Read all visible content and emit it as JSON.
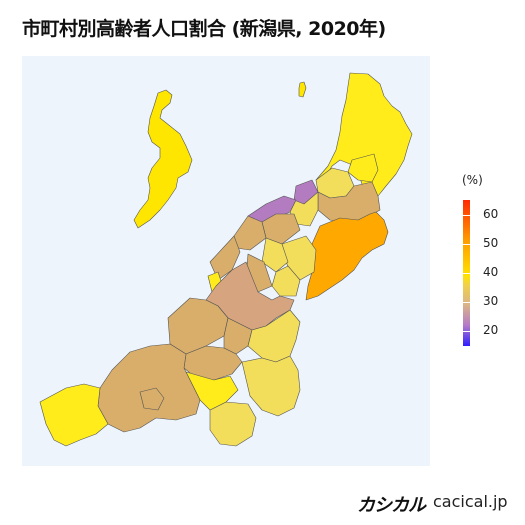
{
  "title": "市町村別高齢者人口割合 (新潟県, 2020年)",
  "legend": {
    "unit": "(%)",
    "ticks": [
      "60",
      "50",
      "40",
      "30",
      "20"
    ],
    "scale_min": 15,
    "scale_max": 65,
    "colors": [
      "#ff2a00",
      "#ffa500",
      "#ffe600",
      "#d8a882",
      "#2f1eff"
    ]
  },
  "map": {
    "colors": {
      "high": "#ffa800",
      "yellow": "#ffee1a",
      "light": "#f2de5a",
      "mid": "#d8ae6a",
      "tan": "#d6a47e",
      "low": "#b47cc0",
      "ocean": "#edf4fb"
    }
  },
  "brand": {
    "logo": "カシカル",
    "url": "cacical.jp"
  }
}
